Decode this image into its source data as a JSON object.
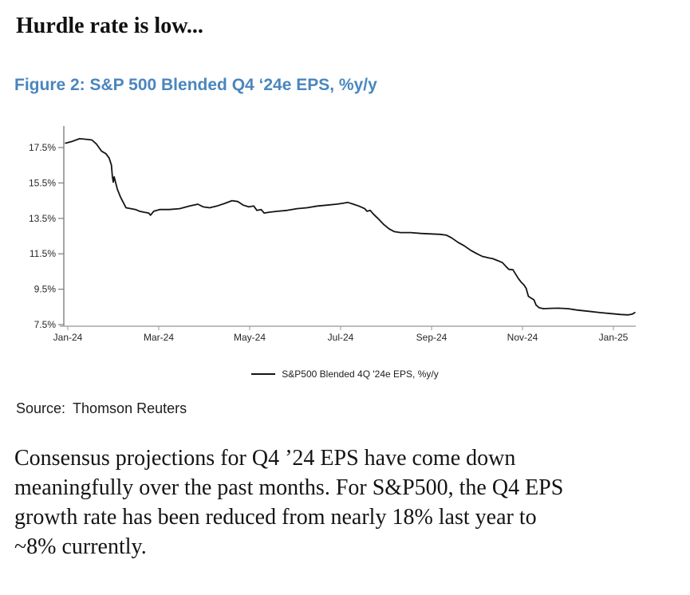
{
  "page": {
    "heading": "Hurdle rate is low...",
    "source_label": "Source:",
    "source_value": "Thomson Reuters",
    "paragraph_lines": [
      "Consensus projections for Q4 ’24 EPS have come down",
      "meaningfully over the past months. For S&P500, the Q4 EPS",
      "growth rate has been reduced from nearly 18% last year to",
      "~8% currently."
    ]
  },
  "colors": {
    "figure_title": "#4a86be",
    "series_line": "#141414",
    "axis_vertical": "#7f7f7f",
    "axis_horizontal": "#a6a6a6",
    "tick_text": "#262626"
  },
  "chart_data": {
    "type": "line",
    "title": "Figure 2: S&P 500 Blended Q4 ‘24e EPS, %y/y",
    "xlabel": "",
    "ylabel": "",
    "grid": false,
    "legend_position": "bottom-center",
    "x_tick_labels": [
      "Jan-24",
      "Mar-24",
      "May-24",
      "Jul-24",
      "Sep-24",
      "Nov-24",
      "Jan-25"
    ],
    "x_tick_months": [
      0,
      2,
      4,
      6,
      8,
      10,
      12
    ],
    "y_tick_labels": [
      "7.5%",
      "9.5%",
      "11.5%",
      "13.5%",
      "15.5%",
      "17.5%"
    ],
    "y_tick_values": [
      7.5,
      9.5,
      11.5,
      13.5,
      15.5,
      17.5
    ],
    "ylim": [
      7.5,
      18.6
    ],
    "xlim_months": [
      -0.1,
      12.5
    ],
    "series": [
      {
        "name": "S&P500 Blended 4Q '24e EPS, %y/y",
        "x_unit": "months since Jan-24",
        "y_unit": "percent y/y",
        "points": [
          [
            -0.05,
            17.75
          ],
          [
            0.1,
            17.85
          ],
          [
            0.26,
            18.0
          ],
          [
            0.4,
            17.97
          ],
          [
            0.53,
            17.93
          ],
          [
            0.63,
            17.7
          ],
          [
            0.74,
            17.3
          ],
          [
            0.84,
            17.15
          ],
          [
            0.91,
            16.9
          ],
          [
            0.96,
            16.5
          ],
          [
            0.98,
            15.85
          ],
          [
            1.0,
            15.55
          ],
          [
            1.02,
            15.85
          ],
          [
            1.09,
            15.15
          ],
          [
            1.16,
            14.7
          ],
          [
            1.23,
            14.35
          ],
          [
            1.28,
            14.1
          ],
          [
            1.39,
            14.05
          ],
          [
            1.49,
            14.0
          ],
          [
            1.58,
            13.9
          ],
          [
            1.67,
            13.85
          ],
          [
            1.78,
            13.8
          ],
          [
            1.82,
            13.68
          ],
          [
            1.89,
            13.9
          ],
          [
            2.02,
            14.0
          ],
          [
            2.23,
            14.0
          ],
          [
            2.46,
            14.05
          ],
          [
            2.68,
            14.2
          ],
          [
            2.86,
            14.3
          ],
          [
            2.98,
            14.15
          ],
          [
            3.12,
            14.1
          ],
          [
            3.28,
            14.2
          ],
          [
            3.46,
            14.35
          ],
          [
            3.61,
            14.5
          ],
          [
            3.74,
            14.45
          ],
          [
            3.86,
            14.25
          ],
          [
            3.98,
            14.15
          ],
          [
            4.09,
            14.2
          ],
          [
            4.16,
            13.95
          ],
          [
            4.25,
            14.0
          ],
          [
            4.32,
            13.8
          ],
          [
            4.44,
            13.85
          ],
          [
            4.61,
            13.9
          ],
          [
            4.82,
            13.95
          ],
          [
            5.04,
            14.05
          ],
          [
            5.26,
            14.1
          ],
          [
            5.49,
            14.2
          ],
          [
            5.7,
            14.25
          ],
          [
            5.91,
            14.3
          ],
          [
            6.05,
            14.35
          ],
          [
            6.16,
            14.4
          ],
          [
            6.28,
            14.3
          ],
          [
            6.4,
            14.2
          ],
          [
            6.53,
            14.05
          ],
          [
            6.58,
            13.9
          ],
          [
            6.65,
            13.95
          ],
          [
            6.72,
            13.75
          ],
          [
            6.82,
            13.5
          ],
          [
            6.95,
            13.15
          ],
          [
            7.07,
            12.9
          ],
          [
            7.18,
            12.75
          ],
          [
            7.32,
            12.7
          ],
          [
            7.54,
            12.7
          ],
          [
            7.77,
            12.65
          ],
          [
            8.0,
            12.62
          ],
          [
            8.19,
            12.6
          ],
          [
            8.33,
            12.55
          ],
          [
            8.44,
            12.4
          ],
          [
            8.58,
            12.15
          ],
          [
            8.72,
            11.95
          ],
          [
            8.86,
            11.7
          ],
          [
            9.0,
            11.5
          ],
          [
            9.12,
            11.35
          ],
          [
            9.25,
            11.27
          ],
          [
            9.35,
            11.22
          ],
          [
            9.47,
            11.1
          ],
          [
            9.56,
            11.0
          ],
          [
            9.63,
            10.8
          ],
          [
            9.7,
            10.62
          ],
          [
            9.79,
            10.6
          ],
          [
            9.85,
            10.35
          ],
          [
            9.91,
            10.1
          ],
          [
            9.97,
            9.9
          ],
          [
            10.03,
            9.75
          ],
          [
            10.08,
            9.55
          ],
          [
            10.13,
            9.1
          ],
          [
            10.19,
            9.0
          ],
          [
            10.25,
            8.9
          ],
          [
            10.3,
            8.6
          ],
          [
            10.37,
            8.45
          ],
          [
            10.46,
            8.4
          ],
          [
            10.61,
            8.42
          ],
          [
            10.79,
            8.43
          ],
          [
            11.0,
            8.4
          ],
          [
            11.21,
            8.32
          ],
          [
            11.46,
            8.25
          ],
          [
            11.7,
            8.18
          ],
          [
            11.95,
            8.12
          ],
          [
            12.16,
            8.07
          ],
          [
            12.33,
            8.05
          ],
          [
            12.42,
            8.1
          ],
          [
            12.47,
            8.18
          ]
        ]
      }
    ]
  }
}
